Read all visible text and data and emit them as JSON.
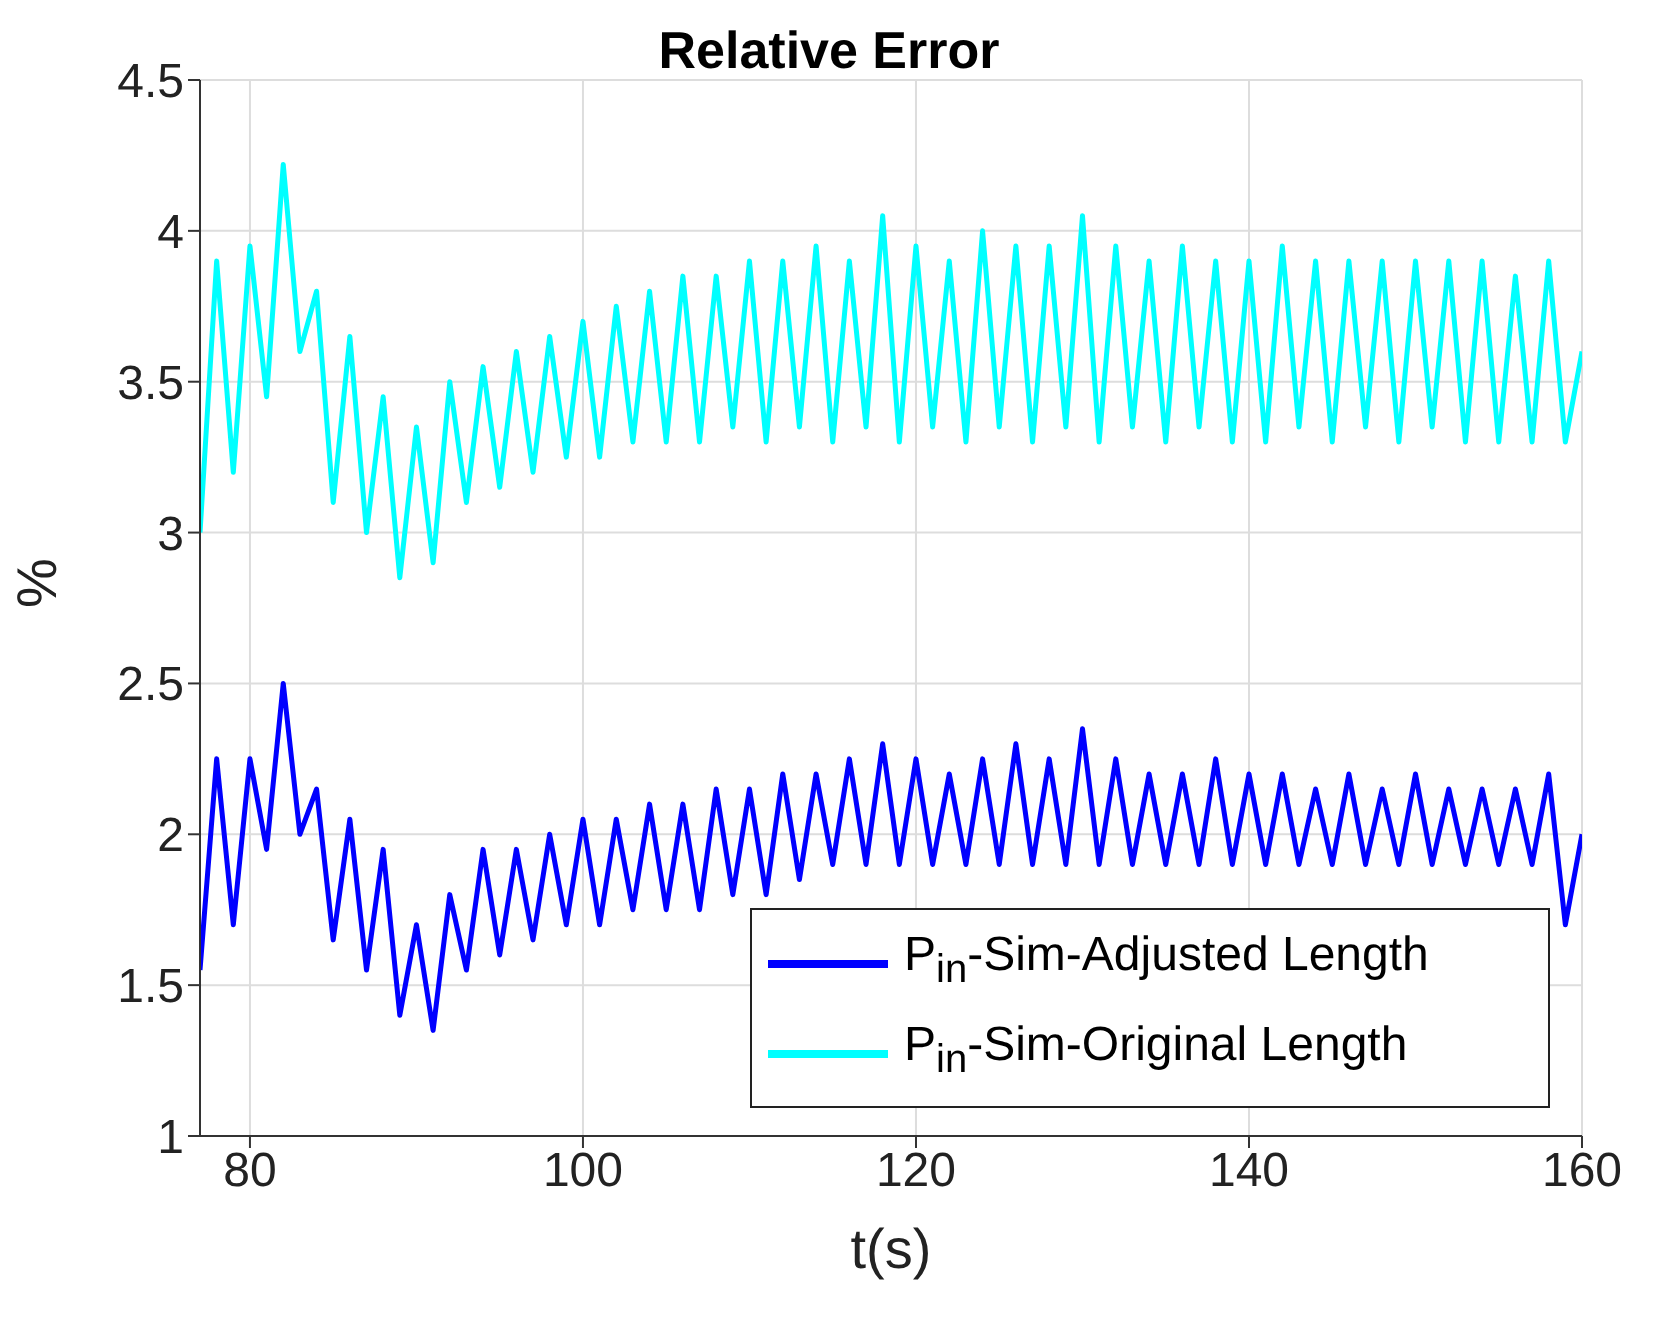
{
  "chart_data": {
    "type": "line",
    "title": "Relative Error",
    "xlabel": "t(s)",
    "ylabel": "%",
    "x": [
      77,
      78,
      79,
      80,
      81,
      82,
      83,
      84,
      85,
      86,
      87,
      88,
      89,
      90,
      91,
      92,
      93,
      94,
      95,
      96,
      97,
      98,
      99,
      100,
      101,
      102,
      103,
      104,
      105,
      106,
      107,
      108,
      109,
      110,
      111,
      112,
      113,
      114,
      115,
      116,
      117,
      118,
      119,
      120,
      121,
      122,
      123,
      124,
      125,
      126,
      127,
      128,
      129,
      130,
      131,
      132,
      133,
      134,
      135,
      136,
      137,
      138,
      139,
      140,
      141,
      142,
      143,
      144,
      145,
      146,
      147,
      148,
      149,
      150,
      151,
      152,
      153,
      154,
      155,
      156,
      157,
      158,
      159,
      160
    ],
    "series": [
      {
        "name": "P$_{in}$-Sim-Adjusted Length",
        "color": "#0000ff",
        "values": [
          1.55,
          2.25,
          1.7,
          2.25,
          1.95,
          2.5,
          2.0,
          2.15,
          1.65,
          2.05,
          1.55,
          1.95,
          1.4,
          1.7,
          1.35,
          1.8,
          1.55,
          1.95,
          1.6,
          1.95,
          1.65,
          2.0,
          1.7,
          2.05,
          1.7,
          2.05,
          1.75,
          2.1,
          1.75,
          2.1,
          1.75,
          2.15,
          1.8,
          2.15,
          1.8,
          2.2,
          1.85,
          2.2,
          1.9,
          2.25,
          1.9,
          2.3,
          1.9,
          2.25,
          1.9,
          2.2,
          1.9,
          2.25,
          1.9,
          2.3,
          1.9,
          2.25,
          1.9,
          2.35,
          1.9,
          2.25,
          1.9,
          2.2,
          1.9,
          2.2,
          1.9,
          2.25,
          1.9,
          2.2,
          1.9,
          2.2,
          1.9,
          2.15,
          1.9,
          2.2,
          1.9,
          2.15,
          1.9,
          2.2,
          1.9,
          2.15,
          1.9,
          2.15,
          1.9,
          2.15,
          1.9,
          2.2,
          1.7,
          2.0
        ]
      },
      {
        "name": "P$_{in}$-Sim-Original Length",
        "color": "#00ffff",
        "values": [
          3.0,
          3.9,
          3.2,
          3.95,
          3.45,
          4.22,
          3.6,
          3.8,
          3.1,
          3.65,
          3.0,
          3.45,
          2.85,
          3.35,
          2.9,
          3.5,
          3.1,
          3.55,
          3.15,
          3.6,
          3.2,
          3.65,
          3.25,
          3.7,
          3.25,
          3.75,
          3.3,
          3.8,
          3.3,
          3.85,
          3.3,
          3.85,
          3.35,
          3.9,
          3.3,
          3.9,
          3.35,
          3.95,
          3.3,
          3.9,
          3.35,
          4.05,
          3.3,
          3.95,
          3.35,
          3.9,
          3.3,
          4.0,
          3.35,
          3.95,
          3.3,
          3.95,
          3.35,
          4.05,
          3.3,
          3.95,
          3.35,
          3.9,
          3.3,
          3.95,
          3.35,
          3.9,
          3.3,
          3.9,
          3.3,
          3.95,
          3.35,
          3.9,
          3.3,
          3.9,
          3.35,
          3.9,
          3.3,
          3.9,
          3.35,
          3.9,
          3.3,
          3.9,
          3.3,
          3.85,
          3.3,
          3.9,
          3.3,
          3.6
        ]
      }
    ],
    "xlim": [
      77,
      160
    ],
    "xticks": [
      80,
      100,
      120,
      140,
      160
    ],
    "ylim": [
      1,
      4.5
    ],
    "yticks": [
      1,
      1.5,
      2,
      2.5,
      3,
      3.5,
      4,
      4.5
    ],
    "grid": true,
    "legend": "bottom right",
    "marker": "none",
    "line_style": "solid"
  }
}
